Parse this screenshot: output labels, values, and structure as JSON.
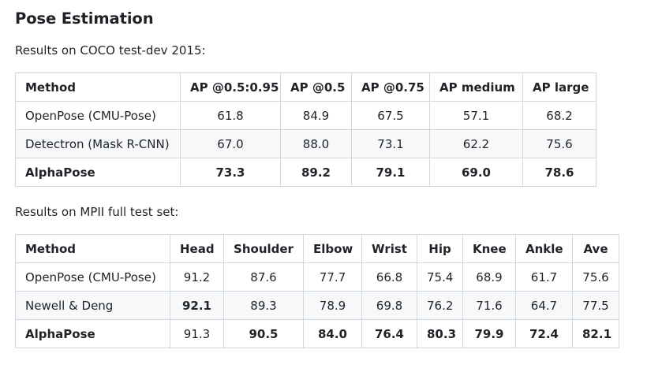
{
  "title": "Pose Estimation",
  "coco": {
    "caption": "Results on COCO test-dev 2015:",
    "headers": [
      "Method",
      "AP @0.5:0.95",
      "AP @0.5",
      "AP @0.75",
      "AP medium",
      "AP large"
    ],
    "rows": [
      [
        "OpenPose (CMU-Pose)",
        "61.8",
        "84.9",
        "67.5",
        "57.1",
        "68.2"
      ],
      [
        "Detectron (Mask R-CNN)",
        "67.0",
        "88.0",
        "73.1",
        "62.2",
        "75.6"
      ],
      [
        "AlphaPose",
        "73.3",
        "89.2",
        "79.1",
        "69.0",
        "78.6"
      ]
    ]
  },
  "mpii": {
    "caption": "Results on MPII full test set:",
    "headers": [
      "Method",
      "Head",
      "Shoulder",
      "Elbow",
      "Wrist",
      "Hip",
      "Knee",
      "Ankle",
      "Ave"
    ],
    "rows": [
      [
        "OpenPose (CMU-Pose)",
        "91.2",
        "87.6",
        "77.7",
        "66.8",
        "75.4",
        "68.9",
        "61.7",
        "75.6"
      ],
      [
        "Newell & Deng",
        "92.1",
        "89.3",
        "78.9",
        "69.8",
        "76.2",
        "71.6",
        "64.7",
        "77.5"
      ],
      [
        "AlphaPose",
        "91.3",
        "90.5",
        "84.0",
        "76.4",
        "80.3",
        "79.9",
        "72.4",
        "82.1"
      ]
    ]
  }
}
